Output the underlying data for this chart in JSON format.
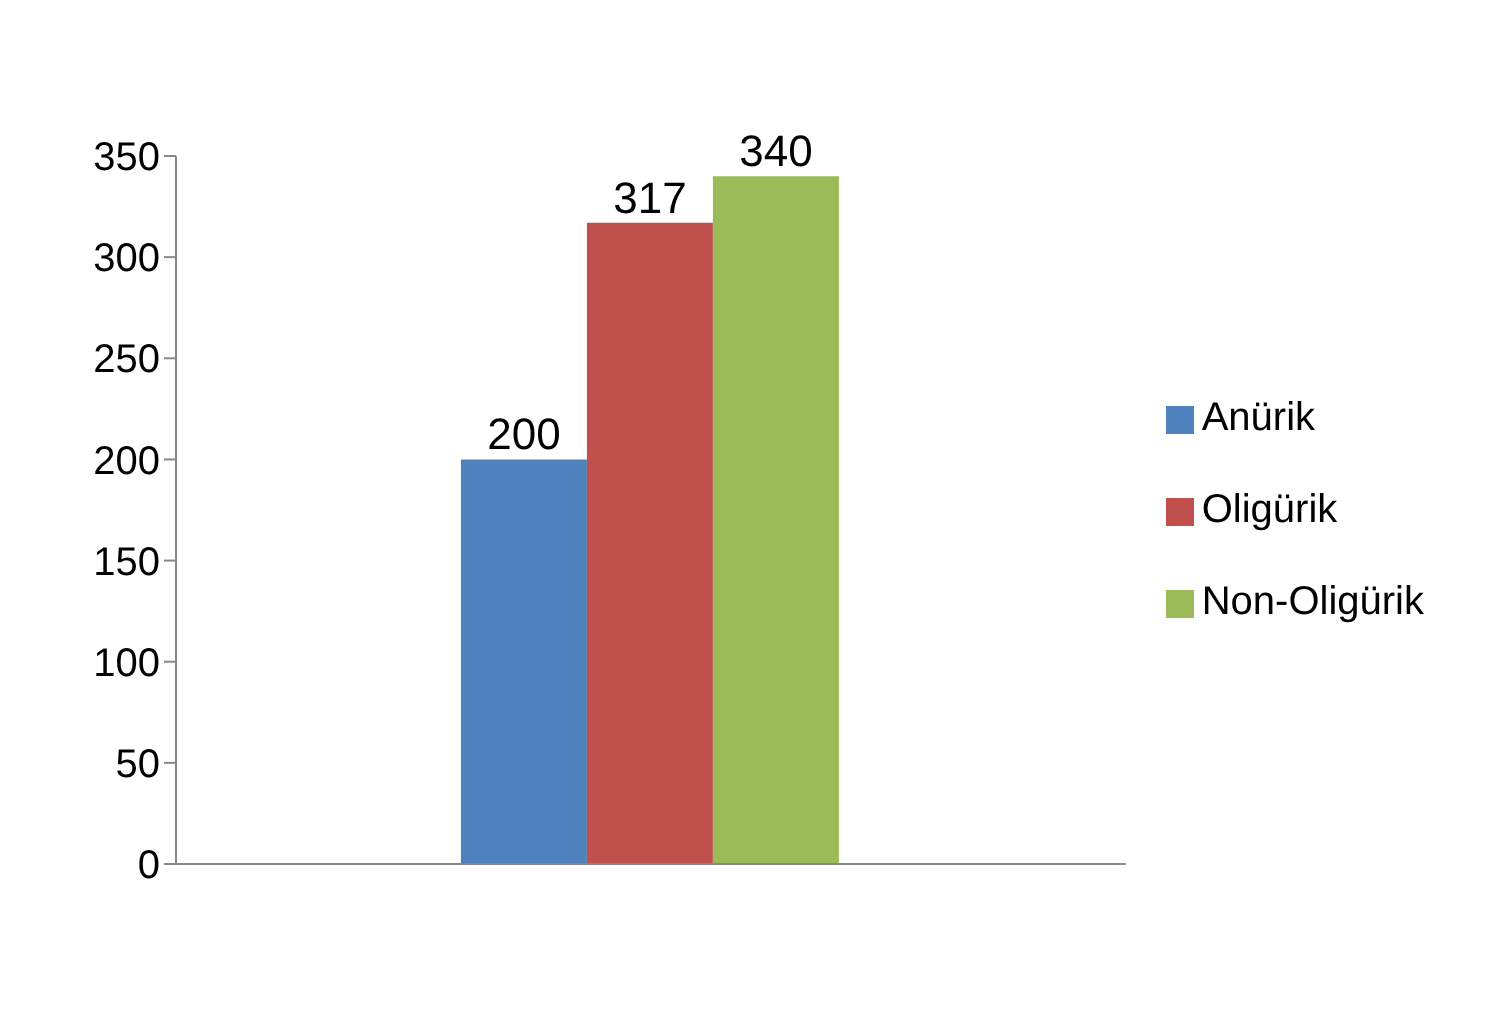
{
  "chart_data": {
    "type": "bar",
    "categories": [
      null
    ],
    "series": [
      {
        "name": "Anürik",
        "color": "#4f81bd",
        "values": [
          200
        ]
      },
      {
        "name": "Oligürik",
        "color": "#c0504d",
        "values": [
          317
        ]
      },
      {
        "name": "Non-Oligürik",
        "color": "#9bbb59",
        "values": [
          340
        ]
      }
    ],
    "ylim": [
      0,
      350
    ],
    "yticks": [
      0,
      50,
      100,
      150,
      200,
      250,
      300,
      350
    ],
    "grid": false,
    "legend": "right",
    "data_labels": true
  }
}
